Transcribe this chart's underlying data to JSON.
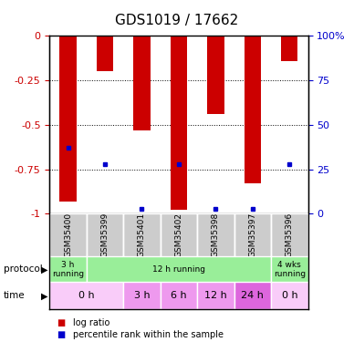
{
  "title": "GDS1019 / 17662",
  "samples": [
    "GSM35400",
    "GSM35399",
    "GSM35401",
    "GSM35402",
    "GSM35398",
    "GSM35397",
    "GSM35396"
  ],
  "log_ratio": [
    -0.93,
    -0.2,
    -0.53,
    -0.98,
    -0.44,
    -0.83,
    -0.14
  ],
  "percentile_rank_left": [
    -0.63,
    -0.72,
    -0.97,
    -0.72,
    -0.97,
    -0.97,
    -0.72
  ],
  "bar_color": "#cc0000",
  "dot_color": "#0000cc",
  "ylim_left": [
    -1.0,
    0.0
  ],
  "yticks_left": [
    0.0,
    -0.25,
    -0.5,
    -0.75,
    -1.0
  ],
  "ytick_labels_left": [
    "0",
    "-0.25",
    "-0.5",
    "-0.75",
    "-1"
  ],
  "ytick_labels_right": [
    "100%",
    "75",
    "50",
    "25",
    "0"
  ],
  "axis_color_left": "#cc0000",
  "axis_color_right": "#0000cc",
  "bar_width": 0.45,
  "grid_color": "#000000",
  "sample_label_bg": "#cccccc",
  "protocol_items": [
    {
      "start": 0,
      "end": 1,
      "label": "3 h\nrunning",
      "color": "#99ee99"
    },
    {
      "start": 1,
      "end": 6,
      "label": "12 h running",
      "color": "#99ee99"
    },
    {
      "start": 6,
      "end": 7,
      "label": "4 wks\nrunning",
      "color": "#99ee99"
    }
  ],
  "time_items": [
    {
      "start": 0,
      "end": 2,
      "label": "0 h",
      "color": "#f9ccf9"
    },
    {
      "start": 2,
      "end": 3,
      "label": "3 h",
      "color": "#ee99ee"
    },
    {
      "start": 3,
      "end": 4,
      "label": "6 h",
      "color": "#ee99ee"
    },
    {
      "start": 4,
      "end": 5,
      "label": "12 h",
      "color": "#ee99ee"
    },
    {
      "start": 5,
      "end": 6,
      "label": "24 h",
      "color": "#dd66dd"
    },
    {
      "start": 6,
      "end": 7,
      "label": "0 h",
      "color": "#f9ccf9"
    }
  ],
  "legend": [
    {
      "label": "log ratio",
      "color": "#cc0000"
    },
    {
      "label": "percentile rank within the sample",
      "color": "#0000cc"
    }
  ]
}
